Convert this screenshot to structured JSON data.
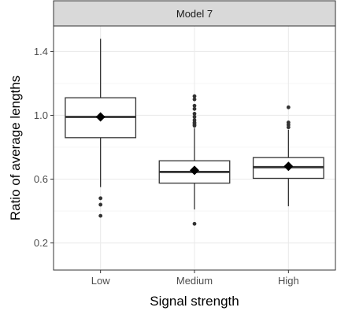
{
  "chart_data": {
    "type": "box",
    "facet_label": "Model 7",
    "xlabel": "Signal strength",
    "ylabel": "Ratio of average lengths",
    "categories": [
      "Low",
      "Medium",
      "High"
    ],
    "ylim": [
      0.03,
      1.56
    ],
    "yticks": [
      0.2,
      0.6,
      1.0,
      1.4
    ],
    "ytick_labels": [
      "0.2",
      "0.6",
      "1.0",
      "1.4"
    ],
    "grid": true,
    "boxes": [
      {
        "category": "Low",
        "whisker_low": 0.55,
        "q1": 0.86,
        "median": 0.99,
        "q3": 1.11,
        "whisker_high": 1.48,
        "mean": 0.99,
        "outliers": [
          0.48,
          0.44,
          0.37
        ]
      },
      {
        "category": "Medium",
        "whisker_low": 0.41,
        "q1": 0.575,
        "median": 0.645,
        "q3": 0.715,
        "whisker_high": 0.92,
        "mean": 0.655,
        "outliers": [
          1.12,
          1.1,
          1.06,
          1.04,
          1.01,
          0.99,
          0.97,
          0.955,
          0.945,
          0.935,
          0.32
        ]
      },
      {
        "category": "High",
        "whisker_low": 0.43,
        "q1": 0.605,
        "median": 0.675,
        "q3": 0.735,
        "whisker_high": 0.91,
        "mean": 0.68,
        "outliers": [
          1.05,
          0.955,
          0.94,
          0.925
        ]
      }
    ]
  }
}
